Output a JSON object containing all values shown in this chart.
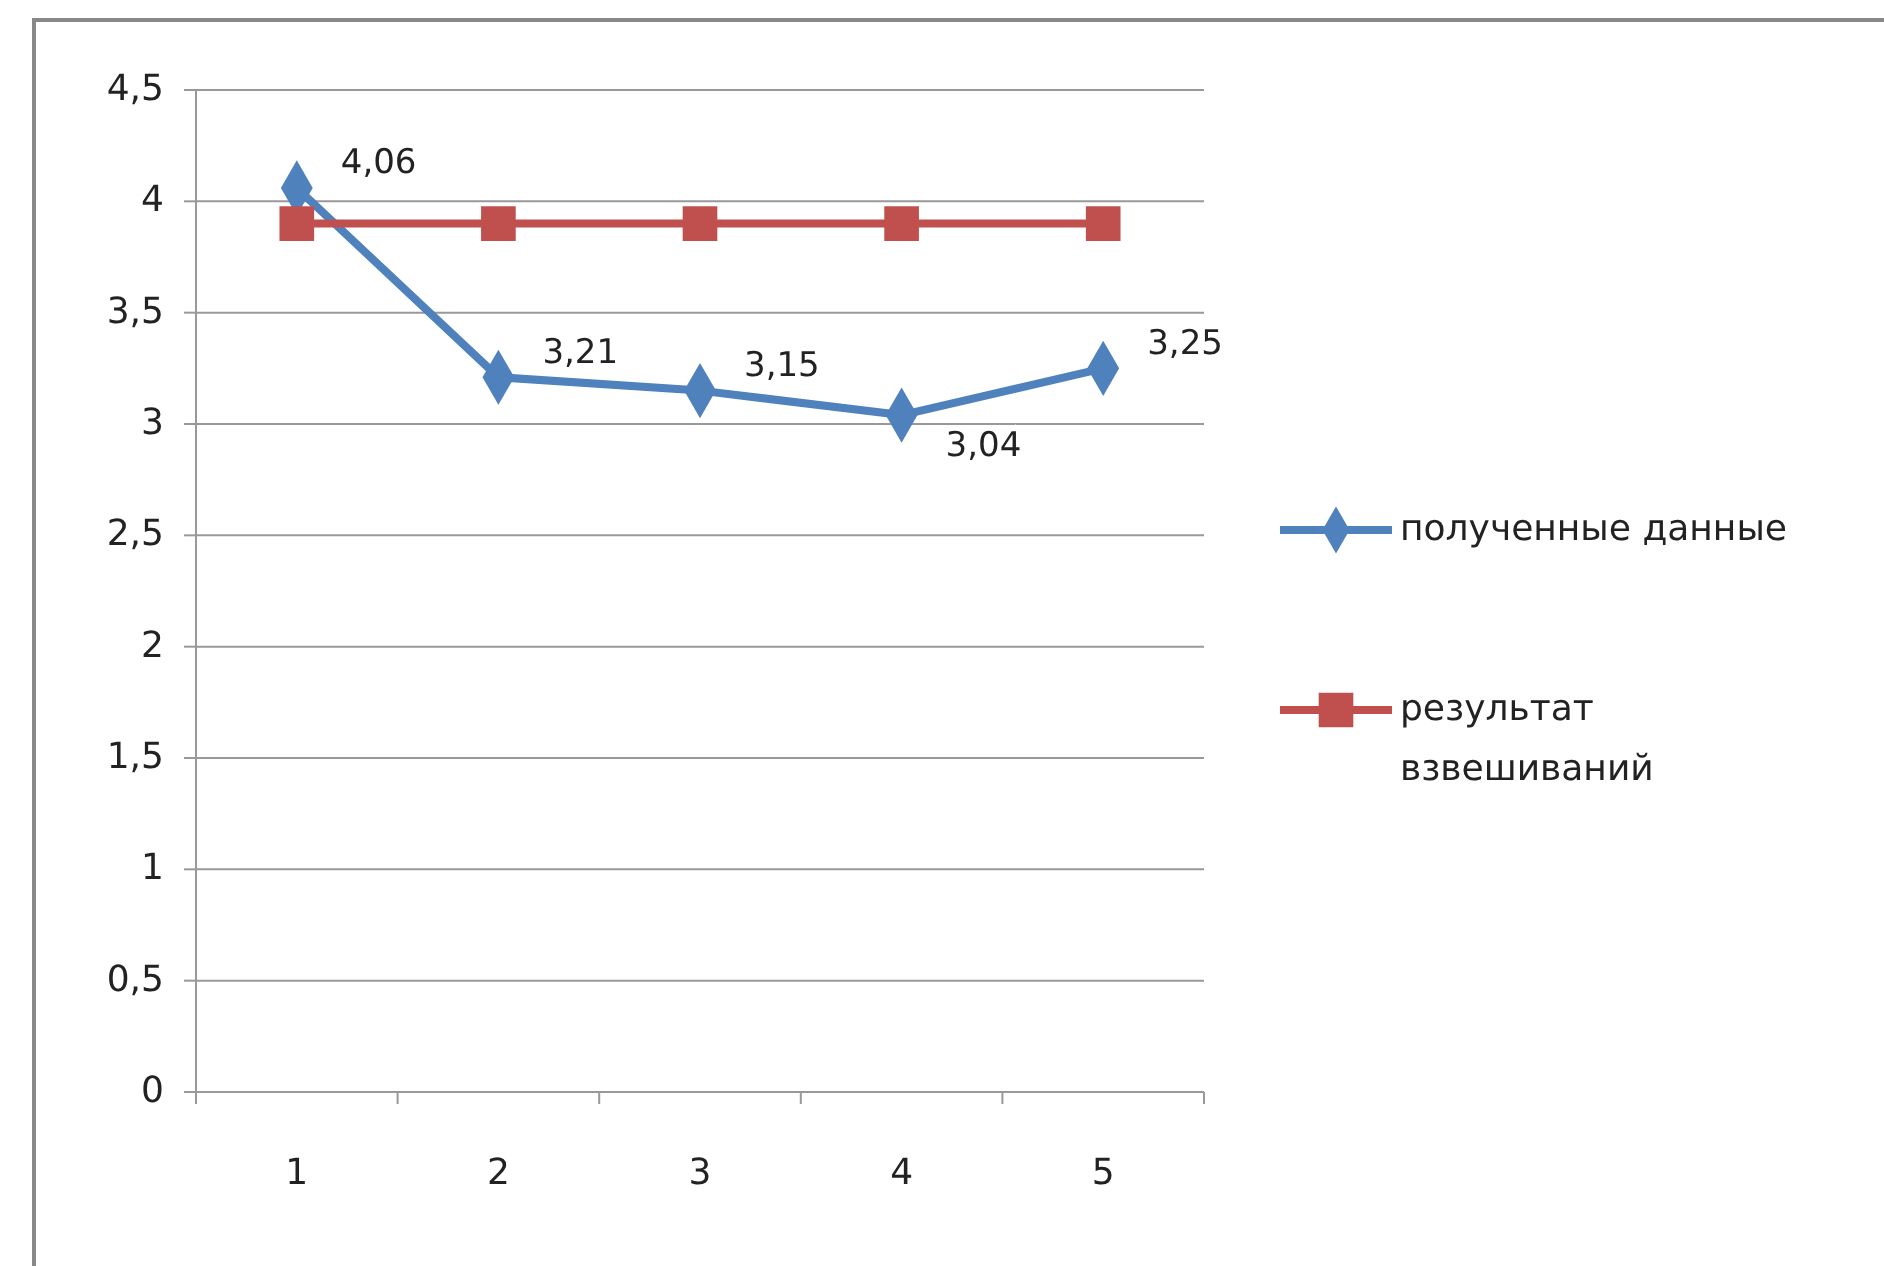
{
  "chart_data": {
    "type": "line",
    "categories": [
      "1",
      "2",
      "3",
      "4",
      "5"
    ],
    "series": [
      {
        "name": "полученные данные",
        "color": "#4f81bd",
        "marker": "diamond",
        "values": [
          4.06,
          3.21,
          3.15,
          3.04,
          3.25
        ],
        "value_labels": [
          "4,06",
          "3,21",
          "3,15",
          "3,04",
          "3,25"
        ]
      },
      {
        "name": "результат взвешиваний",
        "color": "#c0504d",
        "marker": "square",
        "values": [
          3.9,
          3.9,
          3.9,
          3.9,
          3.9
        ]
      }
    ],
    "ylim": [
      0,
      4.5
    ],
    "yticks": [
      0,
      {
        "value": 0.5,
        "label": "0,5"
      },
      1,
      {
        "value": 1.5,
        "label": "1,5"
      },
      2,
      {
        "value": 2.5,
        "label": "2,5"
      },
      3,
      {
        "value": 3.5,
        "label": "3,5"
      },
      4,
      {
        "value": 4.5,
        "label": "4,5"
      }
    ],
    "grid": "y",
    "legend": "right"
  }
}
